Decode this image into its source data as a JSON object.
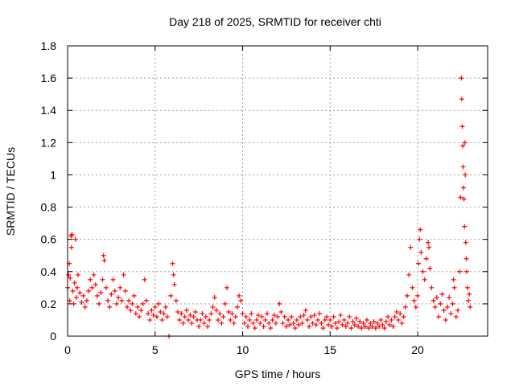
{
  "chart_data": {
    "type": "scatter",
    "title": "Day 218 of 2025, SRMTID for receiver chti",
    "xlabel": "GPS time / hours",
    "ylabel": "SRMTID / TECUs",
    "xlim": [
      0,
      24
    ],
    "ylim": [
      0,
      1.8
    ],
    "xticks": [
      0,
      5,
      10,
      15,
      20
    ],
    "xtick_labels": [
      "0",
      "5",
      "10",
      "15",
      "20"
    ],
    "yticks": [
      0,
      0.2,
      0.4,
      0.6,
      0.8,
      1,
      1.2,
      1.4,
      1.6,
      1.8
    ],
    "ytick_labels": [
      "0",
      "0.2",
      "0.4",
      "0.6",
      "0.8",
      "1",
      "1.2",
      "1.4",
      "1.6",
      "1.8"
    ],
    "grid": true,
    "marker": "+",
    "series": [
      {
        "name": "SRMTID",
        "color": "#ff0000",
        "points": [
          [
            0.0,
            0.3
          ],
          [
            0.05,
            0.38
          ],
          [
            0.1,
            0.45
          ],
          [
            0.12,
            0.22
          ],
          [
            0.15,
            0.36
          ],
          [
            0.2,
            0.62
          ],
          [
            0.22,
            0.55
          ],
          [
            0.25,
            0.63
          ],
          [
            0.3,
            0.28
          ],
          [
            0.35,
            0.2
          ],
          [
            0.4,
            0.33
          ],
          [
            0.45,
            0.6
          ],
          [
            0.5,
            0.24
          ],
          [
            0.55,
            0.3
          ],
          [
            0.6,
            0.38
          ],
          [
            0.7,
            0.27
          ],
          [
            0.8,
            0.21
          ],
          [
            0.9,
            0.25
          ],
          [
            1.0,
            0.18
          ],
          [
            1.1,
            0.22
          ],
          [
            1.2,
            0.28
          ],
          [
            1.3,
            0.35
          ],
          [
            1.4,
            0.3
          ],
          [
            1.5,
            0.38
          ],
          [
            1.6,
            0.32
          ],
          [
            1.7,
            0.25
          ],
          [
            1.8,
            0.2
          ],
          [
            1.9,
            0.27
          ],
          [
            2.0,
            0.35
          ],
          [
            2.05,
            0.5
          ],
          [
            2.1,
            0.47
          ],
          [
            2.2,
            0.3
          ],
          [
            2.3,
            0.22
          ],
          [
            2.4,
            0.18
          ],
          [
            2.5,
            0.26
          ],
          [
            2.6,
            0.35
          ],
          [
            2.7,
            0.28
          ],
          [
            2.8,
            0.2
          ],
          [
            2.9,
            0.24
          ],
          [
            3.0,
            0.3
          ],
          [
            3.1,
            0.22
          ],
          [
            3.2,
            0.38
          ],
          [
            3.3,
            0.28
          ],
          [
            3.4,
            0.18
          ],
          [
            3.5,
            0.22
          ],
          [
            3.6,
            0.16
          ],
          [
            3.7,
            0.2
          ],
          [
            3.8,
            0.25
          ],
          [
            3.9,
            0.14
          ],
          [
            4.0,
            0.18
          ],
          [
            4.1,
            0.12
          ],
          [
            4.2,
            0.16
          ],
          [
            4.3,
            0.2
          ],
          [
            4.4,
            0.35
          ],
          [
            4.5,
            0.22
          ],
          [
            4.6,
            0.14
          ],
          [
            4.7,
            0.1
          ],
          [
            4.8,
            0.16
          ],
          [
            4.9,
            0.13
          ],
          [
            5.0,
            0.18
          ],
          [
            5.1,
            0.12
          ],
          [
            5.2,
            0.2
          ],
          [
            5.3,
            0.15
          ],
          [
            5.4,
            0.1
          ],
          [
            5.5,
            0.14
          ],
          [
            5.6,
            0.18
          ],
          [
            5.7,
            0.12
          ],
          [
            5.8,
            0.0
          ],
          [
            5.9,
            0.25
          ],
          [
            6.0,
            0.45
          ],
          [
            6.05,
            0.38
          ],
          [
            6.1,
            0.32
          ],
          [
            6.2,
            0.22
          ],
          [
            6.3,
            0.15
          ],
          [
            6.4,
            0.1
          ],
          [
            6.5,
            0.14
          ],
          [
            6.6,
            0.08
          ],
          [
            6.7,
            0.12
          ],
          [
            6.8,
            0.16
          ],
          [
            6.9,
            0.1
          ],
          [
            7.0,
            0.13
          ],
          [
            7.1,
            0.08
          ],
          [
            7.2,
            0.12
          ],
          [
            7.3,
            0.15
          ],
          [
            7.4,
            0.1
          ],
          [
            7.5,
            0.06
          ],
          [
            7.6,
            0.1
          ],
          [
            7.7,
            0.14
          ],
          [
            7.8,
            0.08
          ],
          [
            7.9,
            0.12
          ],
          [
            8.0,
            0.06
          ],
          [
            8.1,
            0.1
          ],
          [
            8.2,
            0.14
          ],
          [
            8.3,
            0.18
          ],
          [
            8.4,
            0.24
          ],
          [
            8.5,
            0.16
          ],
          [
            8.6,
            0.1
          ],
          [
            8.7,
            0.14
          ],
          [
            8.8,
            0.08
          ],
          [
            8.9,
            0.12
          ],
          [
            9.0,
            0.2
          ],
          [
            9.1,
            0.3
          ],
          [
            9.2,
            0.15
          ],
          [
            9.3,
            0.1
          ],
          [
            9.4,
            0.14
          ],
          [
            9.5,
            0.08
          ],
          [
            9.6,
            0.12
          ],
          [
            9.7,
            0.18
          ],
          [
            9.8,
            0.25
          ],
          [
            9.9,
            0.22
          ],
          [
            10.0,
            0.14
          ],
          [
            10.1,
            0.08
          ],
          [
            10.2,
            0.12
          ],
          [
            10.3,
            0.06
          ],
          [
            10.4,
            0.1
          ],
          [
            10.5,
            0.14
          ],
          [
            10.6,
            0.08
          ],
          [
            10.7,
            0.05
          ],
          [
            10.8,
            0.1
          ],
          [
            10.9,
            0.13
          ],
          [
            11.0,
            0.08
          ],
          [
            11.1,
            0.12
          ],
          [
            11.2,
            0.06
          ],
          [
            11.3,
            0.1
          ],
          [
            11.4,
            0.14
          ],
          [
            11.5,
            0.08
          ],
          [
            11.6,
            0.05
          ],
          [
            11.7,
            0.1
          ],
          [
            11.8,
            0.13
          ],
          [
            11.9,
            0.08
          ],
          [
            12.0,
            0.12
          ],
          [
            12.1,
            0.2
          ],
          [
            12.2,
            0.15
          ],
          [
            12.3,
            0.08
          ],
          [
            12.4,
            0.12
          ],
          [
            12.5,
            0.06
          ],
          [
            12.6,
            0.1
          ],
          [
            12.7,
            0.07
          ],
          [
            12.8,
            0.12
          ],
          [
            12.9,
            0.08
          ],
          [
            13.0,
            0.05
          ],
          [
            13.1,
            0.1
          ],
          [
            13.2,
            0.07
          ],
          [
            13.3,
            0.12
          ],
          [
            13.4,
            0.08
          ],
          [
            13.5,
            0.13
          ],
          [
            13.6,
            0.16
          ],
          [
            13.7,
            0.1
          ],
          [
            13.8,
            0.06
          ],
          [
            13.9,
            0.12
          ],
          [
            14.0,
            0.08
          ],
          [
            14.1,
            0.13
          ],
          [
            14.2,
            0.07
          ],
          [
            14.3,
            0.1
          ],
          [
            14.4,
            0.14
          ],
          [
            14.5,
            0.08
          ],
          [
            14.6,
            0.05
          ],
          [
            14.7,
            0.1
          ],
          [
            14.8,
            0.12
          ],
          [
            14.9,
            0.07
          ],
          [
            15.0,
            0.1
          ],
          [
            15.1,
            0.06
          ],
          [
            15.2,
            0.12
          ],
          [
            15.3,
            0.08
          ],
          [
            15.4,
            0.05
          ],
          [
            15.5,
            0.09
          ],
          [
            15.6,
            0.13
          ],
          [
            15.7,
            0.07
          ],
          [
            15.8,
            0.1
          ],
          [
            15.9,
            0.06
          ],
          [
            16.0,
            0.08
          ],
          [
            16.1,
            0.12
          ],
          [
            16.2,
            0.05
          ],
          [
            16.3,
            0.09
          ],
          [
            16.4,
            0.07
          ],
          [
            16.5,
            0.11
          ],
          [
            16.6,
            0.06
          ],
          [
            16.7,
            0.09
          ],
          [
            16.8,
            0.05
          ],
          [
            16.9,
            0.08
          ],
          [
            17.0,
            0.06
          ],
          [
            17.1,
            0.1
          ],
          [
            17.2,
            0.05
          ],
          [
            17.3,
            0.08
          ],
          [
            17.4,
            0.06
          ],
          [
            17.5,
            0.09
          ],
          [
            17.6,
            0.05
          ],
          [
            17.7,
            0.08
          ],
          [
            17.8,
            0.06
          ],
          [
            17.9,
            0.1
          ],
          [
            18.0,
            0.07
          ],
          [
            18.1,
            0.05
          ],
          [
            18.2,
            0.09
          ],
          [
            18.3,
            0.12
          ],
          [
            18.4,
            0.07
          ],
          [
            18.5,
            0.1
          ],
          [
            18.6,
            0.06
          ],
          [
            18.7,
            0.12
          ],
          [
            18.8,
            0.15
          ],
          [
            18.9,
            0.1
          ],
          [
            19.0,
            0.14
          ],
          [
            19.1,
            0.08
          ],
          [
            19.2,
            0.12
          ],
          [
            19.3,
            0.18
          ],
          [
            19.4,
            0.25
          ],
          [
            19.5,
            0.38
          ],
          [
            19.6,
            0.55
          ],
          [
            19.7,
            0.3
          ],
          [
            19.8,
            0.22
          ],
          [
            19.9,
            0.18
          ],
          [
            20.0,
            0.25
          ],
          [
            20.05,
            0.45
          ],
          [
            20.1,
            0.6
          ],
          [
            20.15,
            0.66
          ],
          [
            20.2,
            0.52
          ],
          [
            20.3,
            0.4
          ],
          [
            20.4,
            0.35
          ],
          [
            20.5,
            0.48
          ],
          [
            20.6,
            0.58
          ],
          [
            20.65,
            0.55
          ],
          [
            20.7,
            0.42
          ],
          [
            20.8,
            0.3
          ],
          [
            20.9,
            0.22
          ],
          [
            21.0,
            0.18
          ],
          [
            21.1,
            0.24
          ],
          [
            21.2,
            0.12
          ],
          [
            21.3,
            0.2
          ],
          [
            21.4,
            0.26
          ],
          [
            21.5,
            0.16
          ],
          [
            21.6,
            0.1
          ],
          [
            21.7,
            0.18
          ],
          [
            21.8,
            0.24
          ],
          [
            21.9,
            0.14
          ],
          [
            22.0,
            0.2
          ],
          [
            22.05,
            0.35
          ],
          [
            22.1,
            0.3
          ],
          [
            22.2,
            0.12
          ],
          [
            22.3,
            0.16
          ],
          [
            22.4,
            0.4
          ],
          [
            22.45,
            0.86
          ],
          [
            22.5,
            1.6
          ],
          [
            22.52,
            1.47
          ],
          [
            22.55,
            1.3
          ],
          [
            22.58,
            1.18
          ],
          [
            22.6,
            1.05
          ],
          [
            22.62,
            0.92
          ],
          [
            22.65,
            0.85
          ],
          [
            22.68,
            0.68
          ],
          [
            22.7,
            1.2
          ],
          [
            22.72,
            1.0
          ],
          [
            22.75,
            0.58
          ],
          [
            22.78,
            0.48
          ],
          [
            22.8,
            0.4
          ],
          [
            22.85,
            0.3
          ],
          [
            22.9,
            0.22
          ],
          [
            22.95,
            0.26
          ],
          [
            23.0,
            0.18
          ]
        ]
      }
    ]
  }
}
